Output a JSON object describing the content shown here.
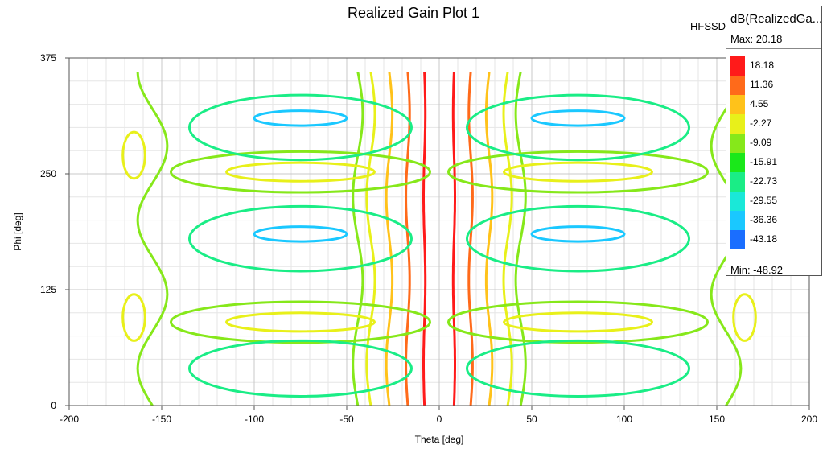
{
  "chart_data": {
    "type": "contour",
    "title": "Realized Gain Plot 1",
    "source_label": "HFSSD",
    "xlabel": "Theta [deg]",
    "ylabel": "Phi [deg]",
    "xlim": [
      -200,
      200
    ],
    "ylim": [
      0,
      375
    ],
    "x_ticks": [
      -200,
      -150,
      -100,
      -50,
      0,
      50,
      100,
      150,
      200
    ],
    "y_ticks": [
      0,
      125,
      250,
      375
    ],
    "grid": true,
    "legend": {
      "title": "dB(RealizedGa...",
      "placement": "top-right",
      "max_label": "Max: 20.18",
      "min_label": "Min: -48.92",
      "levels": [
        {
          "value": "18.18",
          "color": "#ff1a1a"
        },
        {
          "value": "11.36",
          "color": "#ff6a1a"
        },
        {
          "value": "4.55",
          "color": "#ffc21a"
        },
        {
          "value": "-2.27",
          "color": "#e8f01a"
        },
        {
          "value": "-9.09",
          "color": "#86e81a"
        },
        {
          "value": "-15.91",
          "color": "#1ae81a"
        },
        {
          "value": "-22.73",
          "color": "#1aed86"
        },
        {
          "value": "-29.55",
          "color": "#1ae8d8"
        },
        {
          "value": "-36.36",
          "color": "#1ac8ff"
        },
        {
          "value": "-43.18",
          "color": "#1a6eff"
        }
      ]
    },
    "contours": [
      {
        "level": "18.18",
        "theta": [
          -8,
          8
        ],
        "phi_range": [
          0,
          360
        ]
      },
      {
        "level": "11.36",
        "theta": [
          -17,
          17
        ],
        "phi_range": [
          0,
          360
        ]
      },
      {
        "level": "4.55",
        "theta": [
          -27,
          27
        ],
        "phi_range": [
          0,
          360
        ]
      },
      {
        "level": "-2.27",
        "theta": [
          -37,
          37
        ],
        "phi_range": [
          0,
          360
        ]
      },
      {
        "level": "-9.09",
        "theta": [
          -44,
          44
        ],
        "phi_range": [
          0,
          360
        ]
      }
    ]
  }
}
